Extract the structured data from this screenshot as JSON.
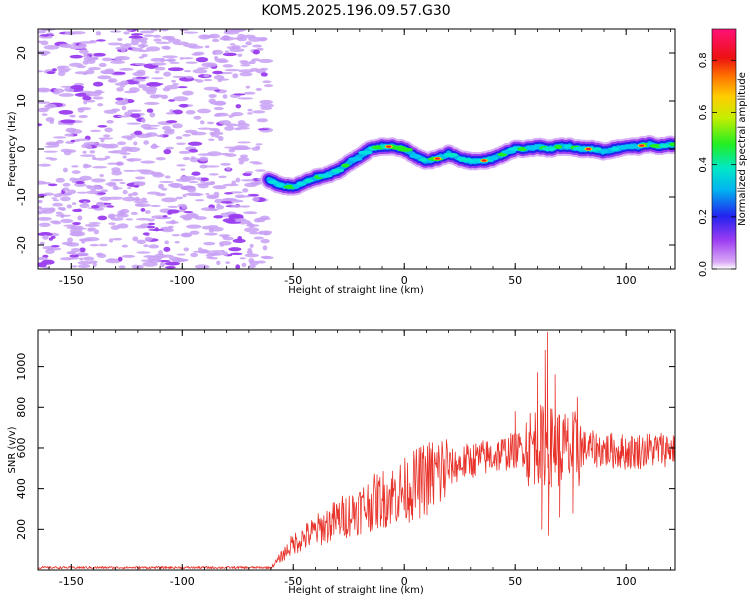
{
  "title": "KOM5.2025.196.09.57.G30",
  "chart_data": [
    {
      "type": "heatmap",
      "xlabel": "Height of straight line (km)",
      "ylabel": "Frequency (Hz)",
      "xlim": [
        -165,
        122
      ],
      "ylim": [
        -25,
        25
      ],
      "xticks": [
        -150,
        -100,
        -50,
        0,
        50,
        100
      ],
      "yticks": [
        -20,
        -10,
        0,
        10,
        20
      ],
      "noise_region_x": [
        -165,
        -61
      ],
      "frequency_ridge": {
        "x": [
          -61,
          -56,
          -50,
          -45,
          -40,
          -35,
          -30,
          -25,
          -20,
          -15,
          -10,
          -5,
          0,
          5,
          10,
          15,
          20,
          25,
          30,
          35,
          40,
          45,
          50,
          55,
          60,
          65,
          70,
          75,
          80,
          85,
          90,
          95,
          100,
          105,
          110,
          115,
          122
        ],
        "y": [
          -6.5,
          -7.5,
          -8,
          -7,
          -6,
          -5.5,
          -4.5,
          -3,
          -1.5,
          0,
          0.5,
          0.5,
          0,
          -1.5,
          -2.5,
          -2,
          -1,
          -2,
          -2.5,
          -2.5,
          -2,
          -1,
          0,
          0,
          0.5,
          0,
          0.5,
          0.5,
          0,
          0,
          -0.5,
          0,
          0.5,
          0.5,
          1,
          0.5,
          1
        ]
      },
      "colorbar": {
        "label": "Normalized spectral amplitude",
        "range": [
          0.0,
          0.92
        ],
        "ticks": [
          "0.0",
          "0.2",
          "0.4",
          "0.6",
          "0.8"
        ],
        "colormap": "rainbow (magenta-blue-cyan-green-yellow-red-pink)"
      }
    },
    {
      "type": "line",
      "xlabel": "Height of straight line (km)",
      "ylabel": "SNR (v/v)",
      "xlim": [
        -165,
        122
      ],
      "ylim": [
        0,
        1180
      ],
      "xticks": [
        -150,
        -100,
        -50,
        0,
        50,
        100
      ],
      "yticks": [
        200,
        400,
        600,
        800,
        1000
      ],
      "series": [
        {
          "color": "#e8332b",
          "envelope": {
            "x": [
              -165,
              -60,
              -55,
              -50,
              -40,
              -30,
              -20,
              -10,
              0,
              10,
              20,
              30,
              40,
              50,
              55,
              60,
              65,
              70,
              75,
              80,
              90,
              100,
              110,
              122
            ],
            "y": [
              12,
              12,
              70,
              130,
              190,
              250,
              300,
              350,
              390,
              450,
              500,
              540,
              560,
              590,
              600,
              620,
              610,
              600,
              580,
              600,
              590,
              580,
              590,
              600
            ]
          },
          "peaks": [
            {
              "x": 63.5,
              "y": 1080
            },
            {
              "x": 64.5,
              "y": 1170
            },
            {
              "x": 60,
              "y": 970
            },
            {
              "x": 68,
              "y": 960
            },
            {
              "x": 50,
              "y": 780
            },
            {
              "x": 78,
              "y": 850
            }
          ],
          "troughs": [
            {
              "x": 62,
              "y": 200
            },
            {
              "x": 65,
              "y": 170
            },
            {
              "x": 70,
              "y": 260
            },
            {
              "x": 76,
              "y": 280
            }
          ]
        }
      ]
    }
  ]
}
